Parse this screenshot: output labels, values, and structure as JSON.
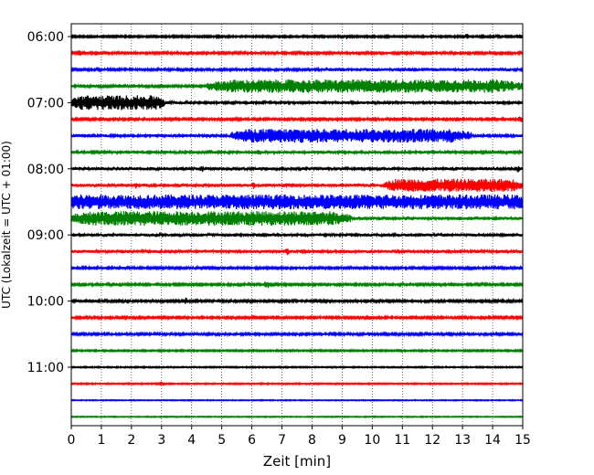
{
  "chart_data": {
    "type": "line",
    "title": "",
    "xlabel": "Zeit  [min]",
    "ylabel": "UTC (Lokalzeit = UTC + 01:00)",
    "xlim": [
      0,
      15
    ],
    "x_ticks": [
      "0",
      "1",
      "2",
      "3",
      "4",
      "5",
      "6",
      "7",
      "8",
      "9",
      "10",
      "11",
      "12",
      "13",
      "14",
      "15"
    ],
    "y_ticks": [
      "06:00",
      "07:00",
      "08:00",
      "09:00",
      "10:00",
      "11:00"
    ],
    "grid": "vertical dotted",
    "trace_interval_minutes": 15,
    "traces": [
      {
        "start": "06:00",
        "color": "#000000",
        "noise": 0.12,
        "bursts": [
          {
            "from": 9.1,
            "to": 9.2,
            "amp": 0.35
          },
          {
            "from": 13.0,
            "to": 13.3,
            "amp": 0.35
          },
          {
            "from": 14.1,
            "to": 14.3,
            "amp": 0.3
          },
          {
            "from": 14.8,
            "to": 15.0,
            "amp": 0.3
          }
        ]
      },
      {
        "start": "06:15",
        "color": "#ff0000",
        "noise": 0.15,
        "bursts": [
          {
            "from": 0.2,
            "to": 0.4,
            "amp": 0.4
          }
        ]
      },
      {
        "start": "06:30",
        "color": "#0000ff",
        "noise": 0.15,
        "bursts": [
          {
            "from": 8.0,
            "to": 15.0,
            "amp": 0.22
          }
        ]
      },
      {
        "start": "06:45",
        "color": "#008000",
        "noise": 0.15,
        "bursts": [
          {
            "from": 4.5,
            "to": 15.0,
            "amp": 0.85
          }
        ]
      },
      {
        "start": "07:00",
        "color": "#000000",
        "noise": 0.18,
        "bursts": [
          {
            "from": 0.0,
            "to": 3.1,
            "amp": 0.95
          }
        ]
      },
      {
        "start": "07:15",
        "color": "#ff0000",
        "noise": 0.15,
        "bursts": [
          {
            "from": 14.8,
            "to": 15.0,
            "amp": 0.4
          }
        ]
      },
      {
        "start": "07:30",
        "color": "#0000ff",
        "noise": 0.18,
        "bursts": [
          {
            "from": 5.3,
            "to": 13.3,
            "amp": 0.9
          }
        ]
      },
      {
        "start": "07:45",
        "color": "#008000",
        "noise": 0.18,
        "bursts": [
          {
            "from": 4.5,
            "to": 4.7,
            "amp": 0.35
          },
          {
            "from": 6.1,
            "to": 6.3,
            "amp": 0.35
          }
        ]
      },
      {
        "start": "08:00",
        "color": "#000000",
        "noise": 0.2,
        "bursts": [
          {
            "from": 4.3,
            "to": 4.4,
            "amp": 0.5
          },
          {
            "from": 14.8,
            "to": 14.9,
            "amp": 0.5
          }
        ]
      },
      {
        "start": "08:15",
        "color": "#ff0000",
        "noise": 0.22,
        "bursts": [
          {
            "from": 10.4,
            "to": 15.0,
            "amp": 0.85
          },
          {
            "from": 2.1,
            "to": 2.2,
            "amp": 0.5
          },
          {
            "from": 6.0,
            "to": 6.1,
            "amp": 0.5
          }
        ]
      },
      {
        "start": "08:30",
        "color": "#0000ff",
        "noise": 0.95,
        "bursts": []
      },
      {
        "start": "08:45",
        "color": "#008000",
        "noise": 0.22,
        "bursts": [
          {
            "from": 0.0,
            "to": 9.3,
            "amp": 0.95
          }
        ]
      },
      {
        "start": "09:00",
        "color": "#000000",
        "noise": 0.2,
        "bursts": []
      },
      {
        "start": "09:15",
        "color": "#ff0000",
        "noise": 0.2,
        "bursts": [
          {
            "from": 7.1,
            "to": 7.25,
            "amp": 0.6
          }
        ]
      },
      {
        "start": "09:30",
        "color": "#0000ff",
        "noise": 0.15,
        "bursts": [
          {
            "from": 14.8,
            "to": 15.0,
            "amp": 0.3
          }
        ]
      },
      {
        "start": "09:45",
        "color": "#008000",
        "noise": 0.15,
        "bursts": [
          {
            "from": 6.4,
            "to": 6.6,
            "amp": 0.45
          }
        ]
      },
      {
        "start": "10:00",
        "color": "#000000",
        "noise": 0.15,
        "bursts": [
          {
            "from": 3.7,
            "to": 3.9,
            "amp": 0.45
          }
        ]
      },
      {
        "start": "10:15",
        "color": "#ff0000",
        "noise": 0.15,
        "bursts": [
          {
            "from": 9.9,
            "to": 10.0,
            "amp": 0.4
          }
        ]
      },
      {
        "start": "10:30",
        "color": "#0000ff",
        "noise": 0.15,
        "bursts": [
          {
            "from": 9.8,
            "to": 10.0,
            "amp": 0.3
          }
        ]
      },
      {
        "start": "10:45",
        "color": "#008000",
        "noise": 0.1,
        "bursts": [
          {
            "from": 13.6,
            "to": 13.7,
            "amp": 0.3
          }
        ]
      },
      {
        "start": "11:00",
        "color": "#000000",
        "noise": 0.08,
        "bursts": []
      },
      {
        "start": "11:15",
        "color": "#ff0000",
        "noise": 0.08,
        "bursts": [
          {
            "from": 2.9,
            "to": 3.1,
            "amp": 0.3
          }
        ]
      },
      {
        "start": "11:30",
        "color": "#0000ff",
        "noise": 0.06,
        "bursts": []
      },
      {
        "start": "11:45",
        "color": "#008000",
        "noise": 0.06,
        "bursts": []
      }
    ]
  }
}
